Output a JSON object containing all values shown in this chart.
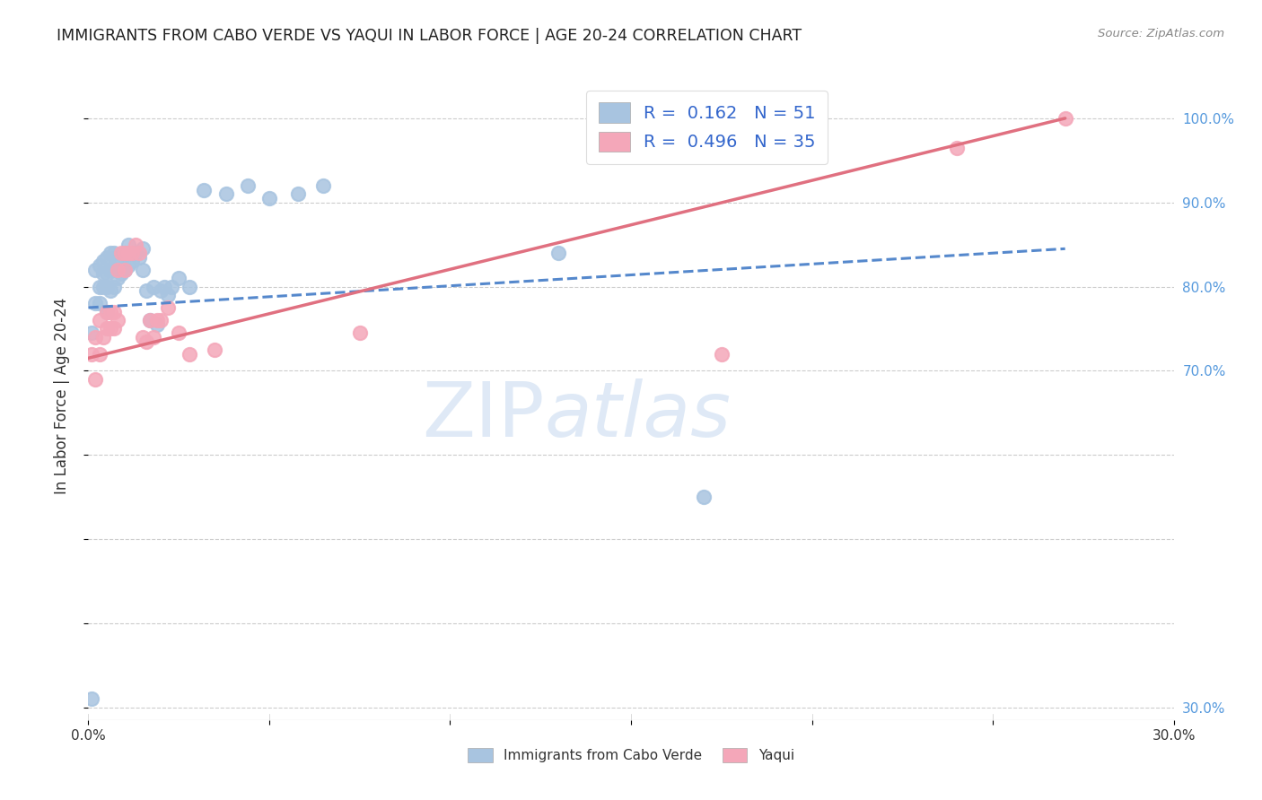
{
  "title": "IMMIGRANTS FROM CABO VERDE VS YAQUI IN LABOR FORCE | AGE 20-24 CORRELATION CHART",
  "source": "Source: ZipAtlas.com",
  "ylabel": "In Labor Force | Age 20-24",
  "xlim": [
    0.0,
    0.3
  ],
  "ylim": [
    0.285,
    1.055
  ],
  "cabo_verde_color": "#a8c4e0",
  "yaqui_color": "#f4a7b9",
  "cabo_verde_line_color": "#5588cc",
  "yaqui_line_color": "#e07080",
  "R_cabo": 0.162,
  "N_cabo": 51,
  "R_yaqui": 0.496,
  "N_yaqui": 35,
  "cabo_trend_x0": 0.0,
  "cabo_trend_y0": 0.775,
  "cabo_trend_x1": 0.27,
  "cabo_trend_y1": 0.845,
  "yaqui_trend_x0": 0.0,
  "yaqui_trend_y0": 0.715,
  "yaqui_trend_x1": 0.27,
  "yaqui_trend_y1": 1.0,
  "cabo_x": [
    0.001,
    0.001,
    0.002,
    0.002,
    0.003,
    0.003,
    0.003,
    0.004,
    0.004,
    0.004,
    0.005,
    0.005,
    0.005,
    0.005,
    0.006,
    0.006,
    0.006,
    0.007,
    0.007,
    0.007,
    0.008,
    0.008,
    0.009,
    0.009,
    0.01,
    0.01,
    0.011,
    0.011,
    0.012,
    0.013,
    0.014,
    0.015,
    0.015,
    0.016,
    0.017,
    0.018,
    0.019,
    0.02,
    0.021,
    0.022,
    0.023,
    0.025,
    0.028,
    0.032,
    0.038,
    0.044,
    0.05,
    0.058,
    0.065,
    0.13,
    0.17
  ],
  "cabo_y": [
    0.31,
    0.745,
    0.78,
    0.82,
    0.78,
    0.8,
    0.825,
    0.8,
    0.815,
    0.83,
    0.77,
    0.8,
    0.815,
    0.835,
    0.795,
    0.82,
    0.84,
    0.8,
    0.82,
    0.84,
    0.81,
    0.835,
    0.815,
    0.83,
    0.82,
    0.84,
    0.825,
    0.85,
    0.83,
    0.84,
    0.835,
    0.82,
    0.845,
    0.795,
    0.76,
    0.8,
    0.755,
    0.795,
    0.8,
    0.79,
    0.8,
    0.81,
    0.8,
    0.915,
    0.91,
    0.92,
    0.905,
    0.91,
    0.92,
    0.84,
    0.55
  ],
  "yaqui_x": [
    0.001,
    0.002,
    0.002,
    0.003,
    0.003,
    0.004,
    0.005,
    0.005,
    0.006,
    0.006,
    0.007,
    0.007,
    0.008,
    0.008,
    0.009,
    0.01,
    0.01,
    0.011,
    0.012,
    0.013,
    0.014,
    0.015,
    0.016,
    0.017,
    0.018,
    0.019,
    0.02,
    0.022,
    0.025,
    0.028,
    0.035,
    0.075,
    0.175,
    0.24,
    0.27
  ],
  "yaqui_y": [
    0.72,
    0.69,
    0.74,
    0.72,
    0.76,
    0.74,
    0.75,
    0.77,
    0.75,
    0.77,
    0.75,
    0.77,
    0.76,
    0.82,
    0.84,
    0.82,
    0.84,
    0.84,
    0.84,
    0.85,
    0.84,
    0.74,
    0.735,
    0.76,
    0.74,
    0.76,
    0.76,
    0.775,
    0.745,
    0.72,
    0.725,
    0.745,
    0.72,
    0.965,
    1.0
  ],
  "x_tick_vals": [
    0.0,
    0.05,
    0.1,
    0.15,
    0.2,
    0.25,
    0.3
  ],
  "x_tick_labels": [
    "0.0%",
    "",
    "",
    "",
    "",
    "",
    "30.0%"
  ],
  "y_tick_vals": [
    0.3,
    0.4,
    0.5,
    0.6,
    0.7,
    0.8,
    0.9,
    1.0
  ],
  "y_tick_labels": [
    "30.0%",
    "",
    "",
    "",
    "70.0%",
    "80.0%",
    "90.0%",
    "100.0%"
  ],
  "legend_cabo_label": "Immigrants from Cabo Verde",
  "legend_yaqui_label": "Yaqui",
  "watermark_zip": "ZIP",
  "watermark_atlas": "atlas",
  "bg_color": "#ffffff",
  "grid_color": "#cccccc",
  "title_color": "#222222",
  "source_color": "#888888",
  "ylabel_color": "#333333",
  "tick_color_right": "#5599dd",
  "tick_color_bottom": "#333333"
}
